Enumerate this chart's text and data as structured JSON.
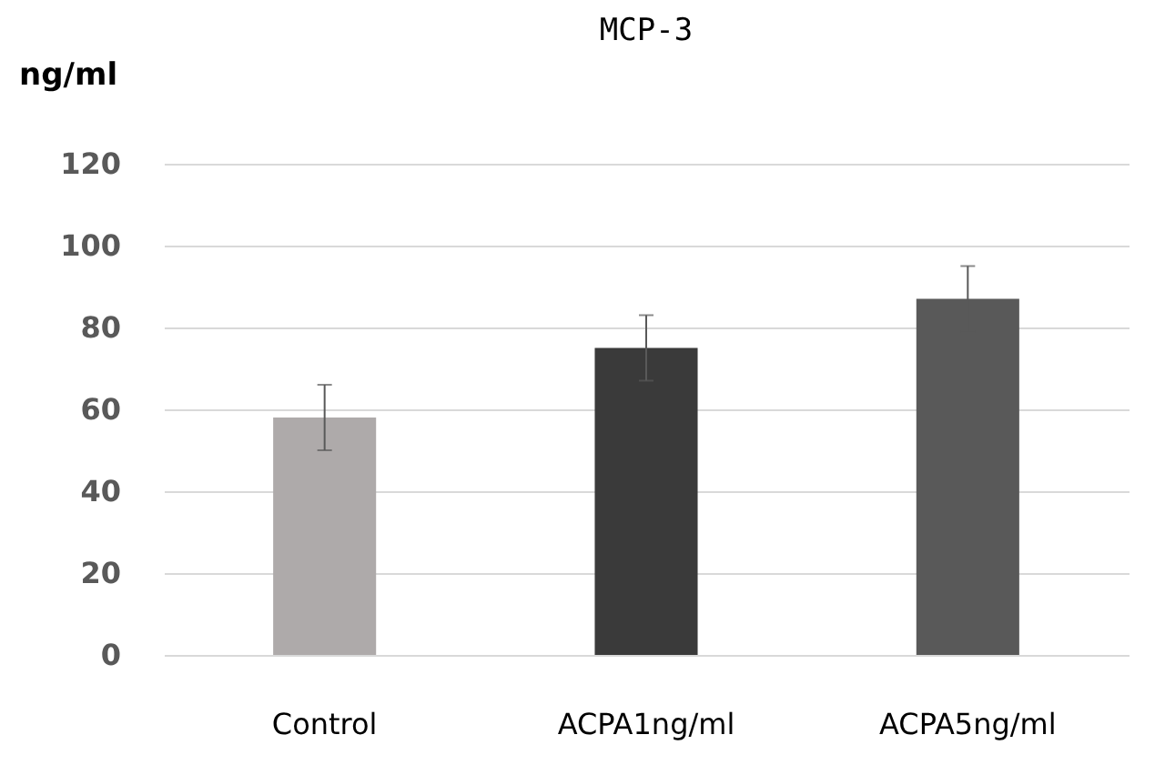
{
  "chart_data": {
    "type": "bar",
    "title": "MCP-3",
    "ylabel": "ng/ml",
    "categories": [
      "Control",
      "ACPA1ng/ml",
      "ACPA5ng/ml"
    ],
    "values": [
      58,
      75,
      87
    ],
    "colors": [
      "#aeaaaa",
      "#3a3a3a",
      "#595959"
    ],
    "errors": [
      8,
      8,
      8
    ],
    "ylim": [
      0,
      120
    ],
    "yticks": [
      0,
      20,
      40,
      60,
      80,
      100,
      120
    ],
    "grid": "y"
  }
}
